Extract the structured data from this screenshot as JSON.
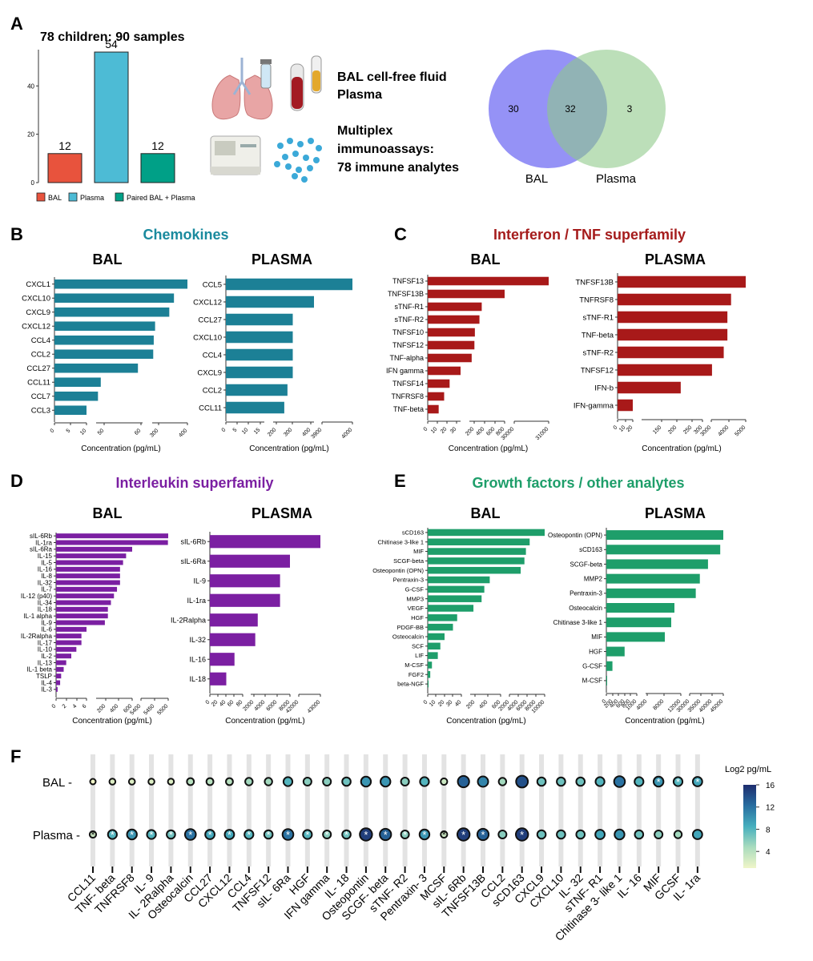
{
  "panel_letters": [
    "A",
    "B",
    "C",
    "D",
    "E",
    "F"
  ],
  "panel_a": {
    "title": "78 children: 90 samples",
    "labels": [
      "BAL cell-free fluid",
      "Plasma",
      "Multiplex",
      "immunoassays:",
      "78 immune analytes"
    ],
    "legend": [
      "BAL",
      "Plasma",
      "Paired BAL + Plasma"
    ],
    "legend_colors": [
      "#E8533D",
      "#4DBBD5",
      "#00A087"
    ],
    "venn": {
      "left_label": "BAL",
      "right_label": "Plasma",
      "left_only": "30",
      "both": "32",
      "right_only": "3",
      "left_color": "#8F8CF5",
      "right_color": "#8FC98A"
    }
  },
  "section_titles": {
    "B": {
      "text": "Chemokines",
      "color": "#1A8A9E"
    },
    "C": {
      "text": "Interferon / TNF superfamily",
      "color": "#A51C1C"
    },
    "D": {
      "text": "Interleukin superfamily",
      "color": "#7B1FA2"
    },
    "E": {
      "text": "Growth factors / other analytes",
      "color": "#1E9E6A"
    }
  },
  "sub_titles": {
    "bal": "BAL",
    "plasma": "PLASMA"
  },
  "xlabel": "Concentration (pg/mL)",
  "heatmap_legend": {
    "title": "Log2 pg/mL",
    "ticks": [
      "16",
      "12",
      "8",
      "4"
    ]
  },
  "chart_data": [
    {
      "id": "A-bar",
      "type": "bar",
      "title": "78 children: 90 samples",
      "categories": [
        "BAL",
        "Plasma",
        "Paired BAL + Plasma"
      ],
      "values": [
        12,
        54,
        12
      ],
      "colors": [
        "#E8533D",
        "#4DBBD5",
        "#00A087"
      ],
      "ylim": [
        0,
        55
      ],
      "yticks": [
        "0",
        "20",
        "40"
      ]
    },
    {
      "id": "B-bal",
      "type": "bar",
      "color": "#1C8096",
      "categories": [
        "CXCL1",
        "CXCL10",
        "CXCL9",
        "CXCL12",
        "CCL4",
        "CCL2",
        "CCL27",
        "CCL11",
        "CCL7",
        "CCL3"
      ],
      "values": [
        400,
        270,
        225,
        88,
        75,
        70,
        55,
        15,
        12,
        10
      ],
      "ticks": [
        "0",
        "5",
        "10",
        "50",
        "60",
        "300",
        "400"
      ]
    },
    {
      "id": "B-plasma",
      "type": "bar",
      "color": "#1C8096",
      "categories": [
        "CCL5",
        "CXCL12",
        "CCL27",
        "CXCL10",
        "CCL4",
        "CXCL9",
        "CCL2",
        "CCL11"
      ],
      "values": [
        4000,
        400,
        200,
        200,
        200,
        200,
        150,
        120
      ],
      "ticks": [
        "0",
        "5",
        "10",
        "15",
        "200",
        "300",
        "400",
        "3900",
        "4000"
      ]
    },
    {
      "id": "C-bal",
      "type": "bar",
      "color": "#A81919",
      "categories": [
        "TNFSF13",
        "TNFSF13B",
        "sTNF-R1",
        "sTNF-R2",
        "TNFSF10",
        "TNFSF12",
        "TNF-alpha",
        "IFN gamma",
        "TNFSF14",
        "TNFRSF8",
        "TNF-beta"
      ],
      "values": [
        31000,
        800,
        300,
        250,
        150,
        140,
        80,
        30,
        20,
        15,
        10
      ],
      "ticks": [
        "0",
        "10",
        "20",
        "30",
        "200",
        "400",
        "600",
        "800",
        "30000",
        "31000"
      ]
    },
    {
      "id": "C-plasma",
      "type": "bar",
      "color": "#A81919",
      "categories": [
        "TNFSF13B",
        "TNFRSF8",
        "sTNF-R1",
        "TNF-beta",
        "sTNF-R2",
        "TNFSF12",
        "IFN-b",
        "IFN-gamma"
      ],
      "values": [
        5000,
        3000,
        2500,
        2500,
        2000,
        400,
        200,
        20
      ],
      "ticks": [
        "0",
        "10",
        "20",
        "150",
        "200",
        "250",
        "300",
        "3000",
        "4000",
        "5000"
      ]
    },
    {
      "id": "D-bal",
      "type": "bar",
      "color": "#7B1FA2",
      "categories": [
        "sIL-6Rb",
        "IL-1ra",
        "sIL-6Ra",
        "IL-15",
        "IL-5",
        "IL-16",
        "IL-8",
        "IL-32",
        "IL-7",
        "IL-12 (p40)",
        "IL-34",
        "IL-18",
        "IL-1 alpha",
        "IL-9",
        "IL-6",
        "IL-2Ralpha",
        "IL-17",
        "IL-10",
        "IL-2",
        "IL-13",
        "IL-1 beta",
        "TSLP",
        "IL-4",
        "IL-3"
      ],
      "values": [
        5500,
        5450,
        600,
        500,
        450,
        400,
        400,
        400,
        350,
        300,
        250,
        200,
        200,
        150,
        6,
        5,
        5,
        4,
        3,
        2,
        1.5,
        1,
        0.8,
        0.3
      ],
      "ticks": [
        "0",
        "2",
        "4",
        "6",
        "200",
        "400",
        "600",
        "5400",
        "5450",
        "5500"
      ]
    },
    {
      "id": "D-plasma",
      "type": "bar",
      "color": "#7B1FA2",
      "categories": [
        "sIL-6Rb",
        "sIL-6Ra",
        "IL-9",
        "IL-1ra",
        "IL-2Ralpha",
        "IL-32",
        "IL-16",
        "IL-18"
      ],
      "values": [
        43000,
        8000,
        6000,
        6000,
        1500,
        1000,
        60,
        40
      ],
      "ticks": [
        "0",
        "20",
        "40",
        "60",
        "80",
        "2000",
        "4000",
        "6000",
        "8000",
        "42000",
        "43000"
      ]
    },
    {
      "id": "E-bal",
      "type": "bar",
      "color": "#1E9E6A",
      "categories": [
        "sCD163",
        "Chitinase 3-like 1",
        "MIF",
        "SCGF-beta",
        "Osteopontin (OPN)",
        "Pentraxin-3",
        "G-CSF",
        "MMP3",
        "VEGF",
        "HGF",
        "PDGF-BB",
        "Osteocalcin",
        "SCF",
        "LIF",
        "M-CSF",
        "FGF2",
        "beta-NGF"
      ],
      "values": [
        10000,
        6000,
        5000,
        4600,
        3600,
        400,
        300,
        250,
        100,
        35,
        30,
        20,
        15,
        12,
        5,
        3,
        1
      ],
      "ticks": [
        "0",
        "10",
        "20",
        "30",
        "40",
        "200",
        "400",
        "600",
        "2000",
        "4000",
        "6000",
        "8000",
        "10000"
      ]
    },
    {
      "id": "E-plasma",
      "type": "bar",
      "color": "#1E9E6A",
      "categories": [
        "Osteopontin (OPN)",
        "sCD163",
        "SCGF-beta",
        "MMP2",
        "Pentraxin-3",
        "Osteocalcin",
        "Chitinase 3-like 1",
        "MIF",
        "HGF",
        "G-CSF",
        "M-CSF"
      ],
      "values": [
        45000,
        42000,
        30000,
        22000,
        18000,
        10000,
        9000,
        7000,
        600,
        200,
        20
      ],
      "ticks": [
        "0",
        "200",
        "400",
        "600",
        "800",
        "1000",
        "4000",
        "8000",
        "12000",
        "30000",
        "35000",
        "40000",
        "45000"
      ]
    },
    {
      "id": "F",
      "type": "heatmap",
      "rows": [
        "BAL",
        "Plasma"
      ],
      "columns": [
        "CCL11",
        "TNF- beta",
        "TNFRSF8",
        "IL- 9",
        "IL- 2Ralpha",
        "Osteocalcin",
        "CCL27",
        "CXCL12",
        "CCL4",
        "TNFSF12",
        "sIL- 6Ra",
        "HGF",
        "IFN gamma",
        "IL- 18",
        "Osteopontin",
        "SCGF- beta",
        "sTNF- R2",
        "Pentraxin- 3",
        "MCSF",
        "sIL- 6Rb",
        "TNFSF13B",
        "CCL2",
        "sCD163",
        "CXCL9",
        "CXCL10",
        "IL- 32",
        "sTNF- R1",
        "Chitinase 3- like 1",
        "IL- 16",
        "MIF",
        "GCSF",
        "IL- 1ra"
      ],
      "bal_log2": [
        1,
        2,
        2,
        2,
        2,
        4,
        4,
        4,
        5,
        5,
        8,
        6,
        6,
        7,
        10,
        10,
        6,
        8,
        3,
        13,
        11,
        5,
        14,
        7,
        7,
        7,
        8,
        12,
        8,
        10,
        8,
        9
      ],
      "bal_sig": [
        0,
        0,
        0,
        0,
        0,
        0,
        0,
        0,
        0,
        0,
        0,
        0,
        0,
        0,
        0,
        0,
        0,
        0,
        0,
        0,
        0,
        0,
        0,
        0,
        0,
        0,
        0,
        0,
        0,
        1,
        1,
        1
      ],
      "plasma_log2": [
        3,
        8,
        10,
        8,
        7,
        12,
        9,
        9,
        8,
        7,
        12,
        8,
        6,
        7,
        15,
        13,
        6,
        10,
        3,
        15,
        13,
        6,
        15,
        7,
        7,
        7,
        9,
        10,
        7,
        6,
        5,
        9
      ],
      "plasma_sig": [
        1,
        1,
        1,
        1,
        1,
        1,
        1,
        1,
        1,
        1,
        1,
        1,
        1,
        1,
        1,
        1,
        1,
        1,
        1,
        1,
        1,
        0,
        1,
        0,
        0,
        0,
        0,
        0,
        0,
        0,
        0,
        0
      ],
      "color_range": [
        1,
        16
      ]
    }
  ]
}
